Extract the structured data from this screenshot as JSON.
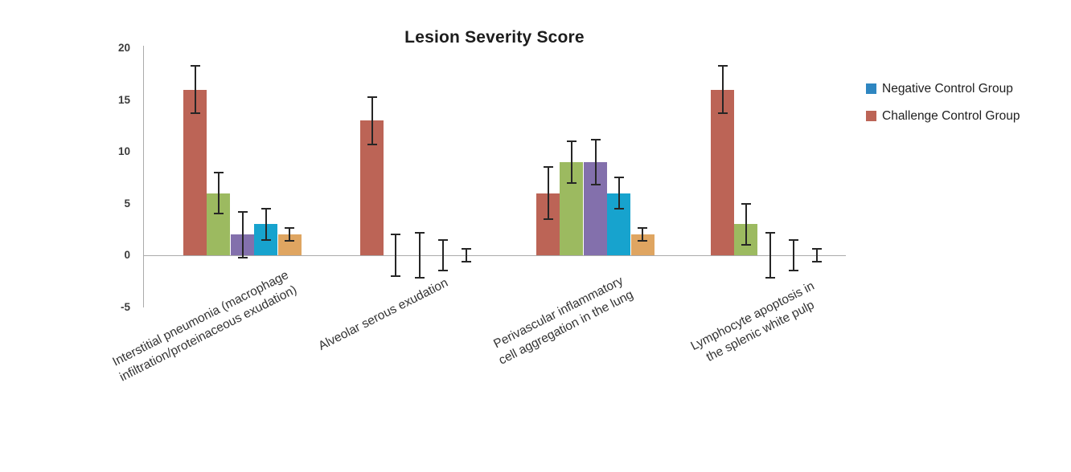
{
  "title": "Lesion Severity Score",
  "chart_data": {
    "type": "bar",
    "title": "Lesion Severity Score",
    "ylim": [
      -5,
      20
    ],
    "yticks": [
      20,
      15,
      10,
      5,
      0,
      -5
    ],
    "grid": "off",
    "legend_position": "right",
    "legend": [
      {
        "label": "Negative Control Group",
        "color": "#2e86c1"
      },
      {
        "label": "Challenge Control Group",
        "color": "#bc6456"
      }
    ],
    "categories": [
      [
        "Interstitial pneumonia (macrophage",
        "infiltration/proteinaceous exudation)"
      ],
      [
        "Alveolar serous exudation"
      ],
      [
        "Perivascular inflammatory",
        "cell aggregation in the lung"
      ],
      [
        "Lymphocyte apoptosis in",
        "the splenic white pulp"
      ]
    ],
    "series": [
      {
        "name": "Challenge Control Group",
        "color": "#bc6456",
        "values": [
          16,
          13,
          6,
          16
        ],
        "errors": [
          2.3,
          2.3,
          2.5,
          2.3
        ]
      },
      {
        "name": "",
        "color": "#9cba60",
        "values": [
          6,
          0,
          9,
          3
        ],
        "errors": [
          2.0,
          2.0,
          2.0,
          2.0
        ]
      },
      {
        "name": "",
        "color": "#8370ac",
        "values": [
          2,
          0,
          9,
          0
        ],
        "errors": [
          2.2,
          2.2,
          2.2,
          2.2
        ]
      },
      {
        "name": "Negative Control Group",
        "color": "#17a3ce",
        "values": [
          3,
          0,
          6,
          0
        ],
        "errors": [
          1.5,
          1.5,
          1.5,
          1.5
        ]
      },
      {
        "name": "",
        "color": "#dfa561",
        "values": [
          2,
          0,
          2,
          0
        ],
        "errors": [
          0.6,
          0.6,
          0.6,
          0.6
        ]
      }
    ]
  }
}
